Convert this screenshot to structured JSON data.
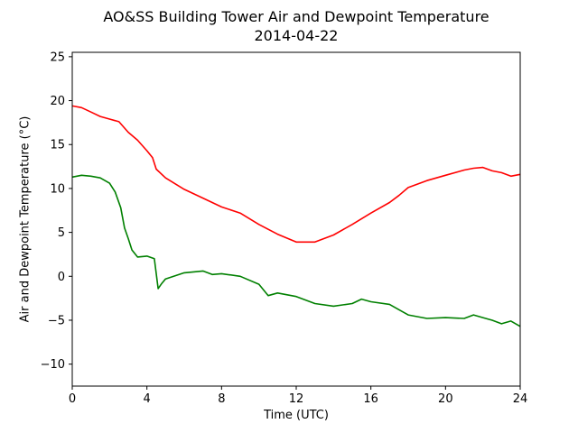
{
  "chart_data": {
    "type": "line",
    "title": "AO&SS Building Tower Air and Dewpoint Temperature",
    "subtitle": "2014-04-22",
    "xlabel": "Time (UTC)",
    "ylabel": "Air and Dewpoint Temperature (°C)",
    "xlim": [
      0,
      24
    ],
    "ylim": [
      -12.5,
      25.5
    ],
    "xticks": [
      0,
      4,
      8,
      12,
      16,
      20,
      24
    ],
    "yticks": [
      -10,
      -5,
      0,
      5,
      10,
      15,
      20,
      25
    ],
    "grid": false,
    "legend": "none",
    "series": [
      {
        "color": "#ff0000",
        "x": [
          0,
          0.5,
          1,
          1.5,
          2,
          2.5,
          3,
          3.5,
          4,
          4.3,
          4.5,
          5,
          6,
          7,
          8,
          9,
          10,
          11,
          12,
          13,
          14,
          15,
          16,
          17,
          17.5,
          18,
          19,
          20,
          21,
          21.5,
          22,
          22.5,
          23,
          23.5,
          24
        ],
        "y": [
          19.4,
          19.2,
          18.7,
          18.2,
          17.9,
          17.6,
          16.4,
          15.5,
          14.3,
          13.5,
          12.2,
          11.2,
          9.9,
          8.9,
          7.9,
          7.2,
          5.9,
          4.8,
          3.9,
          3.9,
          4.7,
          5.9,
          7.2,
          8.4,
          9.2,
          10.1,
          10.9,
          11.5,
          12.1,
          12.3,
          12.4,
          12.0,
          11.8,
          11.4,
          11.6
        ]
      },
      {
        "color": "#008000",
        "x": [
          0,
          0.5,
          1,
          1.5,
          2,
          2.3,
          2.6,
          2.8,
          3,
          3.2,
          3.5,
          4,
          4.4,
          4.6,
          4.8,
          5,
          6,
          7,
          7.5,
          8,
          9,
          10,
          10.5,
          11,
          12,
          13,
          14,
          15,
          15.5,
          16,
          17,
          17.5,
          18,
          19,
          20,
          21,
          21.5,
          22,
          22.5,
          23,
          23.5,
          24
        ],
        "y": [
          11.3,
          11.5,
          11.4,
          11.2,
          10.6,
          9.6,
          7.8,
          5.5,
          4.3,
          3.0,
          2.2,
          2.3,
          2.0,
          -1.4,
          -0.8,
          -0.3,
          0.4,
          0.6,
          0.2,
          0.3,
          0.0,
          -0.9,
          -2.2,
          -1.9,
          -2.3,
          -3.1,
          -3.4,
          -3.1,
          -2.6,
          -2.9,
          -3.2,
          -3.8,
          -4.4,
          -4.8,
          -4.7,
          -4.8,
          -4.4,
          -4.7,
          -5.0,
          -5.4,
          -5.1,
          -5.7
        ]
      }
    ]
  }
}
